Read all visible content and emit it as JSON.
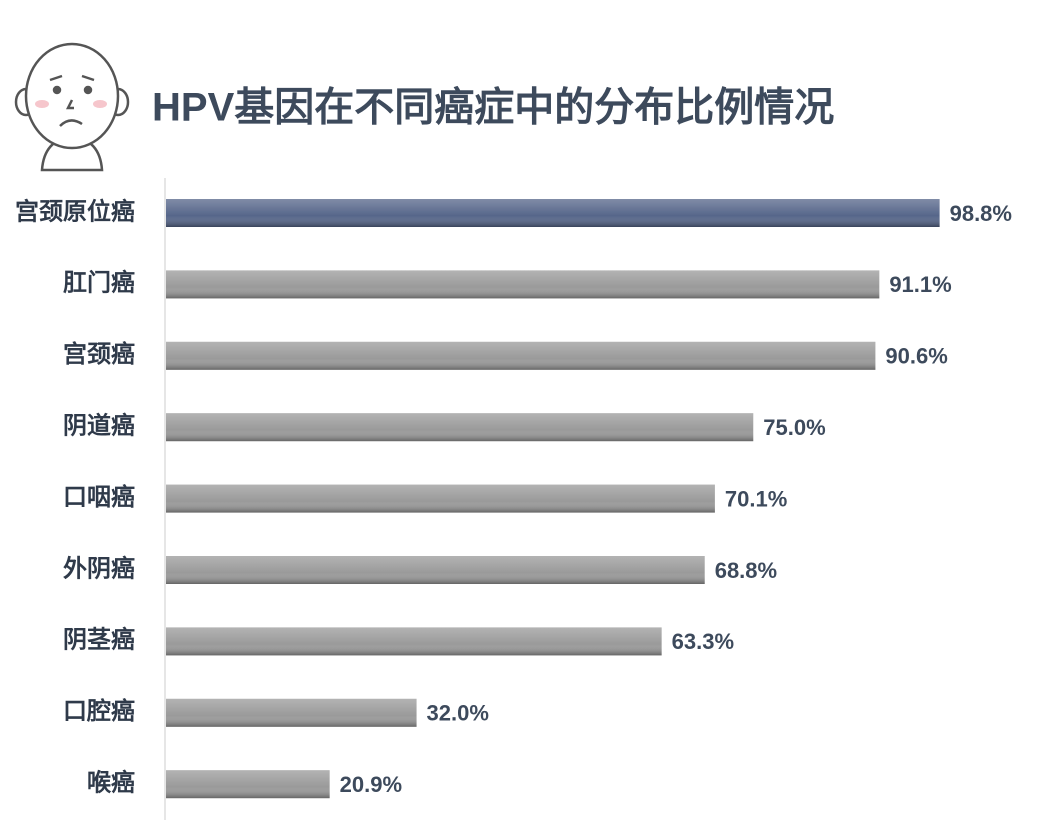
{
  "chart_data": {
    "type": "bar",
    "orientation": "horizontal",
    "title": "HPV基因在不同癌症中的分布比例情况",
    "categories": [
      "宫颈原位癌",
      "肛门癌",
      "宫颈癌",
      "阴道癌",
      "口咽癌",
      "外阴癌",
      "阴茎癌",
      "口腔癌",
      "喉癌"
    ],
    "values": [
      98.8,
      91.1,
      90.6,
      75.0,
      70.1,
      68.8,
      63.3,
      32.0,
      20.9
    ],
    "value_labels": [
      "98.8%",
      "91.1%",
      "90.6%",
      "75.0%",
      "70.1%",
      "68.8%",
      "63.3%",
      "32.0%",
      "20.9%"
    ],
    "colors": [
      "#56668a",
      "#9a9a9a",
      "#9a9a9a",
      "#9a9a9a",
      "#9a9a9a",
      "#9a9a9a",
      "#9a9a9a",
      "#9a9a9a",
      "#9a9a9a"
    ],
    "xlim": [
      0,
      100
    ]
  }
}
